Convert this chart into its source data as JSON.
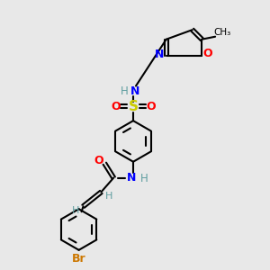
{
  "background_color": "#e8e8e8",
  "colors": {
    "N": "#0000ff",
    "O": "#ff0000",
    "S": "#cccc00",
    "Br": "#cc7700",
    "H": "#5f9ea0",
    "C": "#000000",
    "bond": "#000000"
  }
}
